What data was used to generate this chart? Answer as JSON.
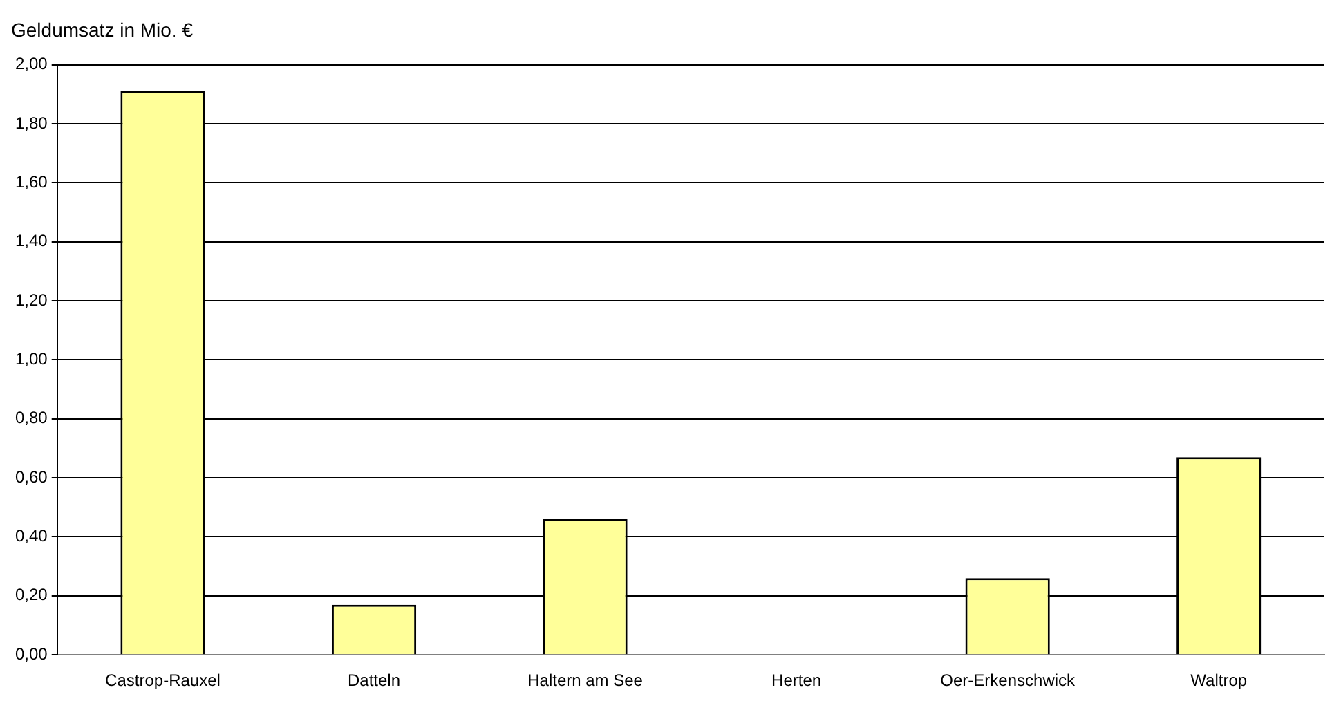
{
  "chart_data": {
    "type": "bar",
    "title": "Geldumsatz in Mio. €",
    "categories": [
      "Castrop-Rauxel",
      "Datteln",
      "Haltern am See",
      "Herten",
      "Oer-Erkenschwick",
      "Waltrop"
    ],
    "values": [
      1.91,
      0.17,
      0.46,
      0,
      0.26,
      0.67
    ],
    "color": "#ffff99",
    "ylim": [
      0,
      2
    ],
    "yticks": [
      {
        "value": 0,
        "label": "0,00"
      },
      {
        "value": 0.2,
        "label": "0,20"
      },
      {
        "value": 0.4,
        "label": "0,40"
      },
      {
        "value": 0.6,
        "label": "0,60"
      },
      {
        "value": 0.8,
        "label": "0,80"
      },
      {
        "value": 1,
        "label": "1,00"
      },
      {
        "value": 1.2,
        "label": "1,20"
      },
      {
        "value": 1.4,
        "label": "1,40"
      },
      {
        "value": 1.6,
        "label": "1,60"
      },
      {
        "value": 1.8,
        "label": "1,80"
      },
      {
        "value": 2,
        "label": "2,00"
      }
    ],
    "grid": "y",
    "legend": false
  }
}
